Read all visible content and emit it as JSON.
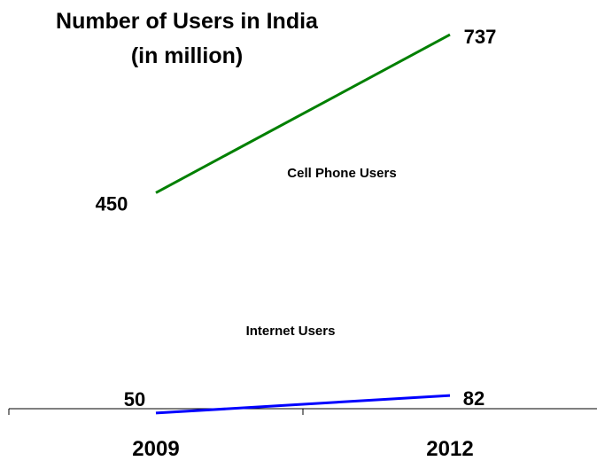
{
  "chart_data": {
    "type": "line",
    "title": [
      "Number of Users in India",
      "(in million)"
    ],
    "categories": [
      "2009",
      "2012"
    ],
    "series": [
      {
        "name": "Cell Phone Users",
        "values": [
          450,
          737
        ],
        "color": "#008000",
        "value_labels": [
          "450",
          "737"
        ]
      },
      {
        "name": "Internet Users",
        "values": [
          50,
          82
        ],
        "color": "#0000ff",
        "value_labels": [
          "50",
          "82"
        ]
      }
    ],
    "ylim": [
      0,
      800
    ],
    "grid": false,
    "legend": "none"
  }
}
